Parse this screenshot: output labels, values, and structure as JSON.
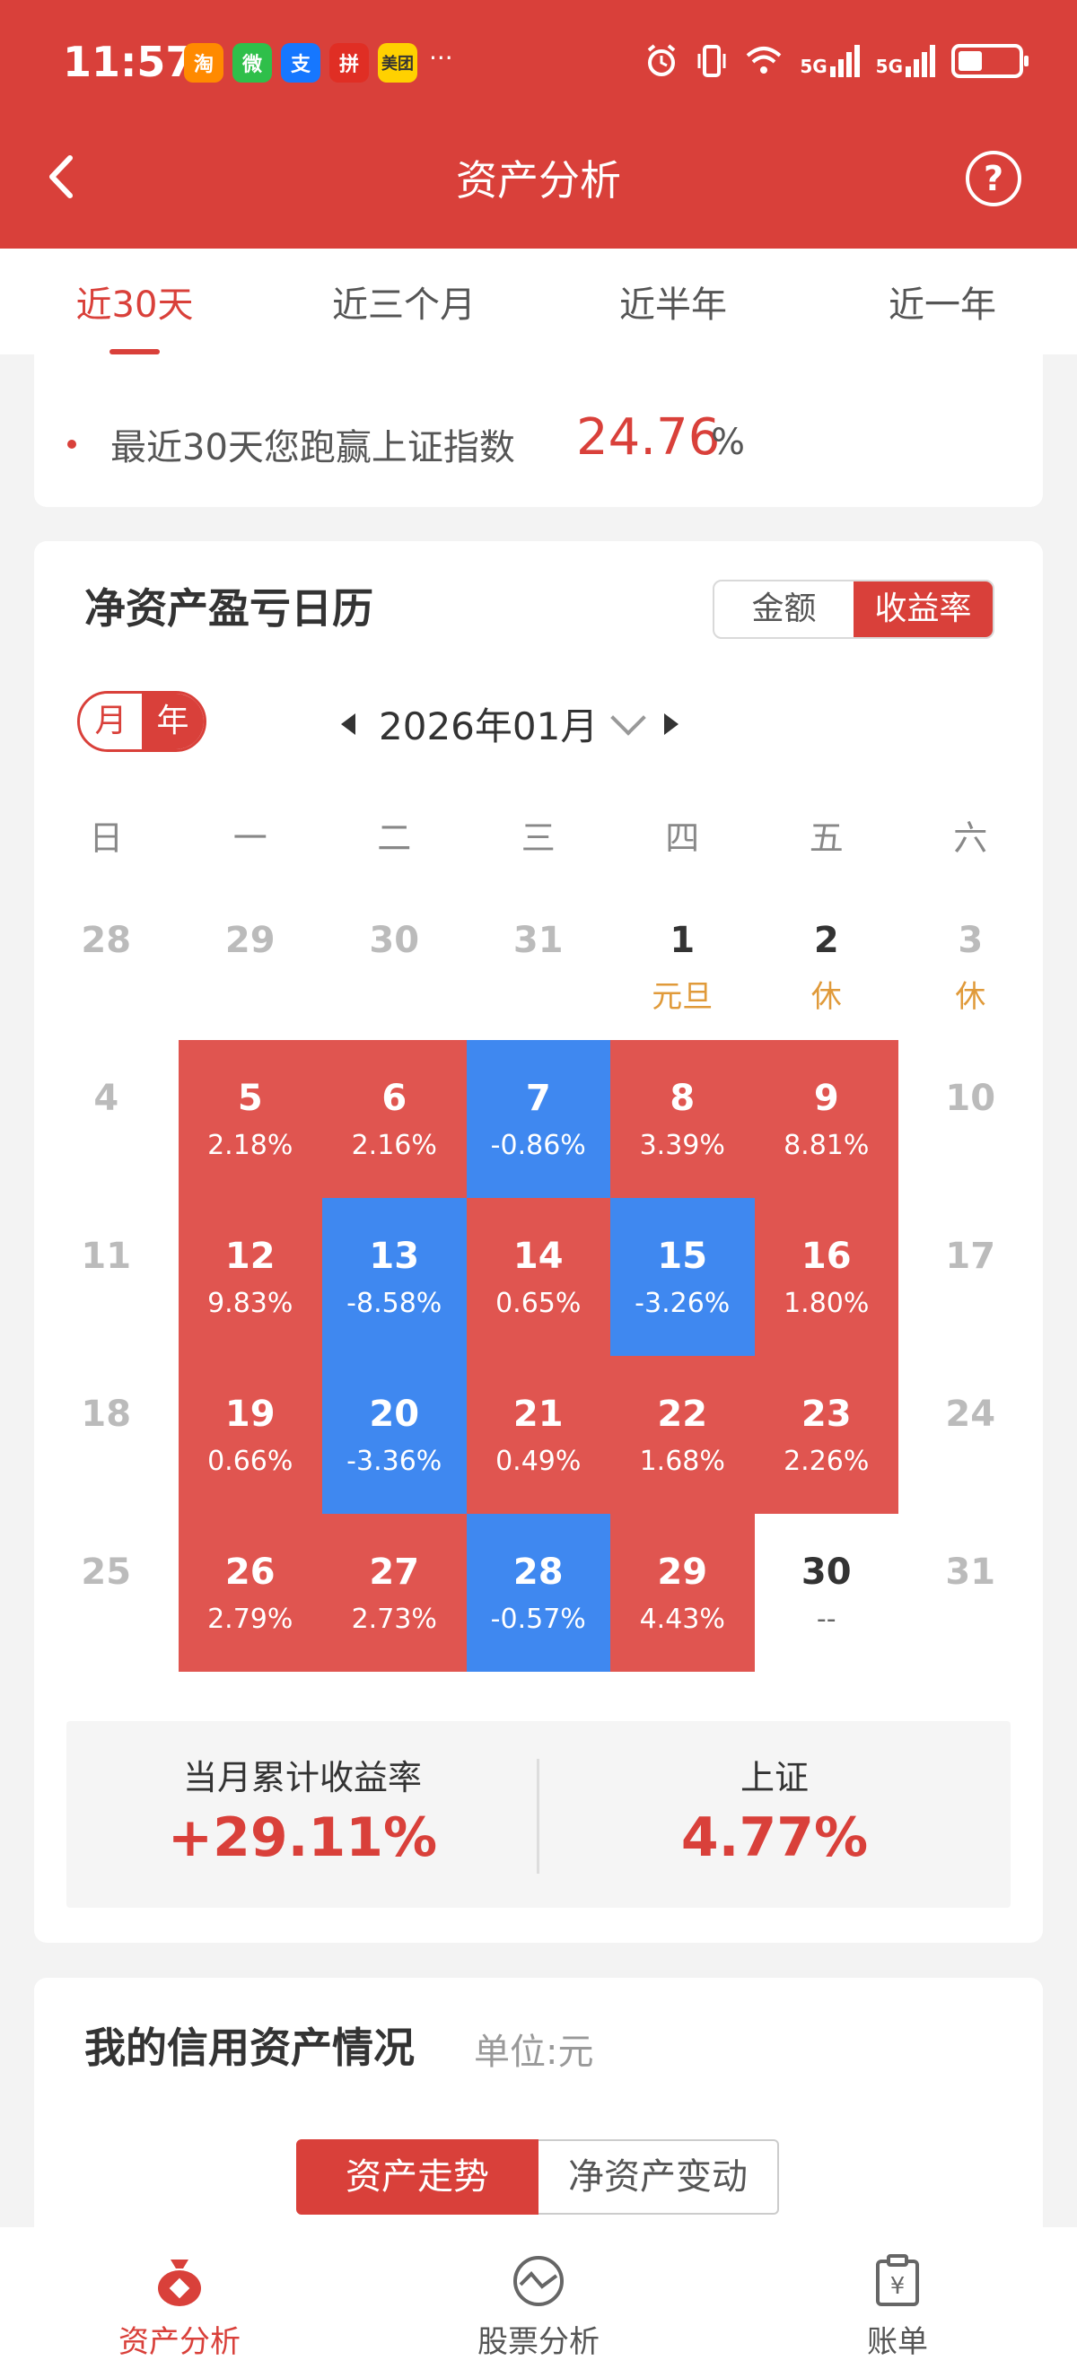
{
  "status_bar": {
    "time": "11:57",
    "apps": [
      "淘",
      "微",
      "支",
      "拼",
      "美团"
    ],
    "more": "···",
    "signal1": "5G",
    "signal2": "5G"
  },
  "header": {
    "title": "资产分析"
  },
  "tabs": [
    {
      "label": "近30天",
      "active": true
    },
    {
      "label": "近三个月"
    },
    {
      "label": "近半年"
    },
    {
      "label": "近一年"
    }
  ],
  "summary": {
    "text": "最近30天您跑赢上证指数",
    "value": "24.76",
    "unit": "%"
  },
  "calendar": {
    "title": "净资产盈亏日历",
    "mode_amount": "金额",
    "mode_rate": "收益率",
    "toggle_month": "月",
    "toggle_year": "年",
    "month": "2026年01月",
    "weekdays": [
      "日",
      "一",
      "二",
      "三",
      "四",
      "五",
      "六"
    ],
    "weeks": [
      [
        {
          "d": "28"
        },
        {
          "d": "29"
        },
        {
          "d": "30"
        },
        {
          "d": "31"
        },
        {
          "d": "1",
          "sub": "元旦",
          "dark": true
        },
        {
          "d": "2",
          "sub": "休",
          "dark": true
        },
        {
          "d": "3",
          "sub": "休"
        }
      ],
      [
        {
          "d": "4"
        },
        {
          "d": "5",
          "v": "2.18%",
          "c": "red"
        },
        {
          "d": "6",
          "v": "2.16%",
          "c": "red"
        },
        {
          "d": "7",
          "v": "-0.86%",
          "c": "blue"
        },
        {
          "d": "8",
          "v": "3.39%",
          "c": "red"
        },
        {
          "d": "9",
          "v": "8.81%",
          "c": "red"
        },
        {
          "d": "10"
        }
      ],
      [
        {
          "d": "11"
        },
        {
          "d": "12",
          "v": "9.83%",
          "c": "red"
        },
        {
          "d": "13",
          "v": "-8.58%",
          "c": "blue"
        },
        {
          "d": "14",
          "v": "0.65%",
          "c": "red"
        },
        {
          "d": "15",
          "v": "-3.26%",
          "c": "blue"
        },
        {
          "d": "16",
          "v": "1.80%",
          "c": "red"
        },
        {
          "d": "17"
        }
      ],
      [
        {
          "d": "18"
        },
        {
          "d": "19",
          "v": "0.66%",
          "c": "red"
        },
        {
          "d": "20",
          "v": "-3.36%",
          "c": "blue"
        },
        {
          "d": "21",
          "v": "0.49%",
          "c": "red"
        },
        {
          "d": "22",
          "v": "1.68%",
          "c": "red"
        },
        {
          "d": "23",
          "v": "2.26%",
          "c": "red"
        },
        {
          "d": "24"
        }
      ],
      [
        {
          "d": "25"
        },
        {
          "d": "26",
          "v": "2.79%",
          "c": "red"
        },
        {
          "d": "27",
          "v": "2.73%",
          "c": "red"
        },
        {
          "d": "28",
          "v": "-0.57%",
          "c": "blue"
        },
        {
          "d": "29",
          "v": "4.43%",
          "c": "red"
        },
        {
          "d": "30",
          "v": "--",
          "dark": true
        },
        {
          "d": "31"
        }
      ]
    ],
    "month_total_label": "当月累计收益率",
    "month_total_value": "+29.11%",
    "index_label": "上证",
    "index_value": "4.77%"
  },
  "credit": {
    "title": "我的信用资产情况",
    "unit": "单位:元",
    "tab_trend": "资产走势",
    "tab_change": "净资产变动"
  },
  "bottom_nav": [
    {
      "label": "资产分析",
      "icon": "money-bag-icon",
      "active": true
    },
    {
      "label": "股票分析",
      "icon": "chart-line-icon"
    },
    {
      "label": "账单",
      "icon": "bill-icon"
    }
  ],
  "colors": {
    "primary": "#d9403a",
    "gain": "#e05550",
    "loss": "#3f88f0",
    "holiday": "#e09a3a"
  }
}
